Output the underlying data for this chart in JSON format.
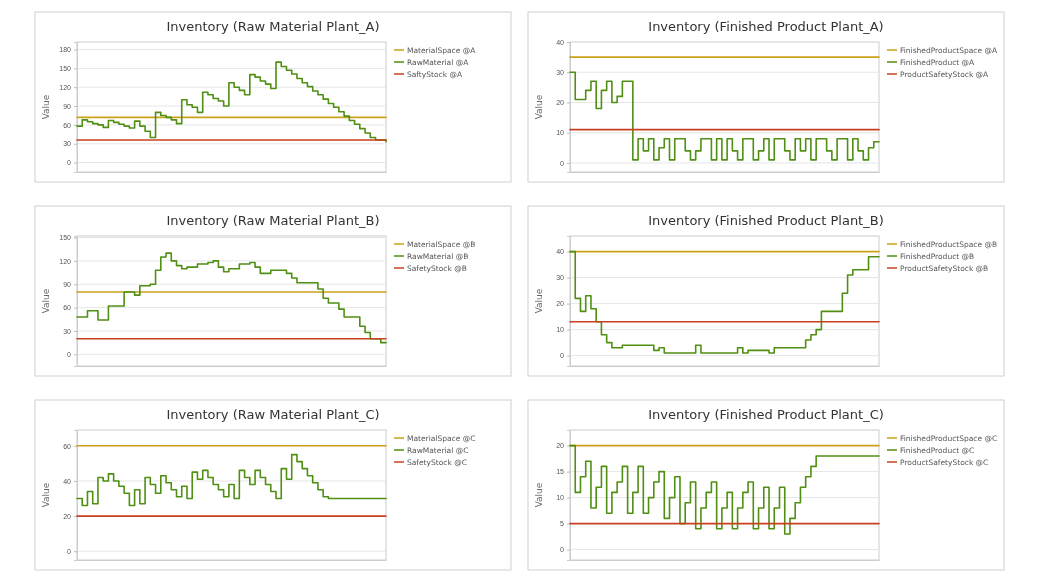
{
  "chart_data": [
    {
      "type": "step",
      "title": "Inventory (Raw Material Plant_A)",
      "ylabel": "Value",
      "ylim": [
        -15,
        192
      ],
      "yticks": [
        0,
        30,
        60,
        90,
        120,
        150,
        180
      ],
      "grid": "y",
      "legend": "right",
      "tick_labels": "y",
      "categories": [
        null,
        null,
        null,
        null,
        null,
        null,
        null,
        null,
        null,
        null,
        null,
        null,
        null,
        null,
        null,
        null,
        null,
        null,
        null,
        null,
        null,
        null,
        null,
        null,
        null,
        null,
        null,
        null,
        null,
        null,
        null,
        null,
        null,
        null,
        null,
        null,
        null,
        null,
        null,
        null,
        null,
        null,
        null,
        null,
        null,
        null,
        null,
        null,
        null,
        null,
        null,
        null,
        null,
        null,
        null,
        null,
        null,
        null,
        null,
        null
      ],
      "series": [
        {
          "type": "line",
          "name": "MaterialSpace @A",
          "color": "#c9a21a",
          "values": [
            72,
            72,
            72,
            72,
            72,
            72,
            72,
            72,
            72,
            72,
            72,
            72,
            72,
            72,
            72,
            72,
            72,
            72,
            72,
            72,
            72,
            72,
            72,
            72,
            72,
            72,
            72,
            72,
            72,
            72,
            72,
            72,
            72,
            72,
            72,
            72,
            72,
            72,
            72,
            72,
            72,
            72,
            72,
            72,
            72,
            72,
            72,
            72,
            72,
            72,
            72,
            72,
            72,
            72,
            72,
            72,
            72,
            72,
            72,
            72
          ]
        },
        {
          "name": "RawMaterial @A",
          "color": "#4f8f12",
          "values": [
            58,
            68,
            65,
            62,
            60,
            56,
            67,
            64,
            61,
            58,
            55,
            66,
            58,
            50,
            40,
            80,
            75,
            72,
            68,
            62,
            100,
            92,
            88,
            80,
            112,
            108,
            102,
            98,
            90,
            127,
            120,
            115,
            108,
            140,
            136,
            130,
            125,
            118,
            160,
            153,
            147,
            141,
            134,
            127,
            121,
            114,
            108,
            101,
            94,
            88,
            81,
            74,
            67,
            61,
            54,
            47,
            40,
            36,
            36,
            33
          ]
        },
        {
          "type": "line",
          "name": "SaftyStock @A",
          "color": "#c8401e",
          "values": [
            36,
            36,
            36,
            36,
            36,
            36,
            36,
            36,
            36,
            36,
            36,
            36,
            36,
            36,
            36,
            36,
            36,
            36,
            36,
            36,
            36,
            36,
            36,
            36,
            36,
            36,
            36,
            36,
            36,
            36,
            36,
            36,
            36,
            36,
            36,
            36,
            36,
            36,
            36,
            36,
            36,
            36,
            36,
            36,
            36,
            36,
            36,
            36,
            36,
            36,
            36,
            36,
            36,
            36,
            36,
            36,
            36,
            36,
            36,
            36
          ]
        }
      ]
    },
    {
      "type": "step",
      "title": "Inventory (Finished Product Plant_A)",
      "ylabel": "Value",
      "ylim": [
        -3,
        40
      ],
      "yticks": [
        0,
        10,
        20,
        30,
        40
      ],
      "grid": "y",
      "legend": "right",
      "tick_labels": "y",
      "categories": [
        null,
        null,
        null,
        null,
        null,
        null,
        null,
        null,
        null,
        null,
        null,
        null,
        null,
        null,
        null,
        null,
        null,
        null,
        null,
        null,
        null,
        null,
        null,
        null,
        null,
        null,
        null,
        null,
        null,
        null,
        null,
        null,
        null,
        null,
        null,
        null,
        null,
        null,
        null,
        null,
        null,
        null,
        null,
        null,
        null,
        null,
        null,
        null,
        null,
        null,
        null,
        null,
        null,
        null,
        null,
        null,
        null,
        null,
        null,
        null
      ],
      "series": [
        {
          "type": "line",
          "name": "FinishedProductSpace @A",
          "color": "#c9a21a",
          "values": [
            35,
            35,
            35,
            35,
            35,
            35,
            35,
            35,
            35,
            35,
            35,
            35,
            35,
            35,
            35,
            35,
            35,
            35,
            35,
            35,
            35,
            35,
            35,
            35,
            35,
            35,
            35,
            35,
            35,
            35,
            35,
            35,
            35,
            35,
            35,
            35,
            35,
            35,
            35,
            35,
            35,
            35,
            35,
            35,
            35,
            35,
            35,
            35,
            35,
            35,
            35,
            35,
            35,
            35,
            35,
            35,
            35,
            35,
            35,
            35
          ]
        },
        {
          "name": "FinishedProduct @A",
          "color": "#4f8f12",
          "values": [
            30,
            21,
            21,
            24,
            27,
            18,
            24,
            27,
            20,
            22,
            27,
            27,
            1,
            8,
            4,
            8,
            1,
            5,
            8,
            1,
            8,
            8,
            4,
            1,
            4,
            8,
            8,
            1,
            8,
            1,
            8,
            4,
            1,
            8,
            8,
            1,
            4,
            8,
            1,
            8,
            8,
            4,
            1,
            8,
            4,
            8,
            1,
            8,
            8,
            4,
            1,
            8,
            8,
            1,
            8,
            4,
            1,
            5,
            7,
            7
          ]
        },
        {
          "type": "line",
          "name": "ProductSafetyStock @A",
          "color": "#c8401e",
          "values": [
            11,
            11,
            11,
            11,
            11,
            11,
            11,
            11,
            11,
            11,
            11,
            11,
            11,
            11,
            11,
            11,
            11,
            11,
            11,
            11,
            11,
            11,
            11,
            11,
            11,
            11,
            11,
            11,
            11,
            11,
            11,
            11,
            11,
            11,
            11,
            11,
            11,
            11,
            11,
            11,
            11,
            11,
            11,
            11,
            11,
            11,
            11,
            11,
            11,
            11,
            11,
            11,
            11,
            11,
            11,
            11,
            11,
            11,
            11,
            11
          ]
        }
      ]
    },
    {
      "type": "step",
      "title": "Inventory (Raw Material Plant_B)",
      "ylabel": "Value",
      "ylim": [
        -15,
        152
      ],
      "yticks": [
        0,
        30,
        60,
        90,
        120,
        150
      ],
      "grid": "y",
      "legend": "right",
      "tick_labels": "y",
      "categories": [
        null,
        null,
        null,
        null,
        null,
        null,
        null,
        null,
        null,
        null,
        null,
        null,
        null,
        null,
        null,
        null,
        null,
        null,
        null,
        null,
        null,
        null,
        null,
        null,
        null,
        null,
        null,
        null,
        null,
        null,
        null,
        null,
        null,
        null,
        null,
        null,
        null,
        null,
        null,
        null,
        null,
        null,
        null,
        null,
        null,
        null,
        null,
        null,
        null,
        null,
        null,
        null,
        null,
        null,
        null,
        null,
        null,
        null,
        null,
        null
      ],
      "series": [
        {
          "type": "line",
          "name": "MaterialSpace @B",
          "color": "#c9a21a",
          "values": [
            80,
            80,
            80,
            80,
            80,
            80,
            80,
            80,
            80,
            80,
            80,
            80,
            80,
            80,
            80,
            80,
            80,
            80,
            80,
            80,
            80,
            80,
            80,
            80,
            80,
            80,
            80,
            80,
            80,
            80,
            80,
            80,
            80,
            80,
            80,
            80,
            80,
            80,
            80,
            80,
            80,
            80,
            80,
            80,
            80,
            80,
            80,
            80,
            80,
            80,
            80,
            80,
            80,
            80,
            80,
            80,
            80,
            80,
            80,
            80
          ]
        },
        {
          "name": "RawMaterial @B",
          "color": "#4f8f12",
          "values": [
            48,
            48,
            56,
            56,
            44,
            44,
            62,
            62,
            62,
            80,
            80,
            76,
            88,
            88,
            90,
            108,
            125,
            130,
            120,
            114,
            110,
            112,
            112,
            116,
            116,
            118,
            120,
            112,
            106,
            110,
            110,
            116,
            116,
            118,
            112,
            104,
            104,
            108,
            108,
            108,
            104,
            98,
            92,
            92,
            92,
            92,
            84,
            72,
            66,
            66,
            58,
            48,
            48,
            48,
            36,
            28,
            20,
            20,
            15,
            15
          ]
        },
        {
          "type": "line",
          "name": "SafetyStock @B",
          "color": "#c8401e",
          "values": [
            20,
            20,
            20,
            20,
            20,
            20,
            20,
            20,
            20,
            20,
            20,
            20,
            20,
            20,
            20,
            20,
            20,
            20,
            20,
            20,
            20,
            20,
            20,
            20,
            20,
            20,
            20,
            20,
            20,
            20,
            20,
            20,
            20,
            20,
            20,
            20,
            20,
            20,
            20,
            20,
            20,
            20,
            20,
            20,
            20,
            20,
            20,
            20,
            20,
            20,
            20,
            20,
            20,
            20,
            20,
            20,
            20,
            20,
            20,
            20
          ]
        }
      ]
    },
    {
      "type": "step",
      "title": "Inventory (Finished Product Plant_B)",
      "ylabel": "Value",
      "ylim": [
        -4,
        46
      ],
      "yticks": [
        0,
        10,
        20,
        30,
        40
      ],
      "grid": "y",
      "legend": "right",
      "tick_labels": "y",
      "categories": [
        null,
        null,
        null,
        null,
        null,
        null,
        null,
        null,
        null,
        null,
        null,
        null,
        null,
        null,
        null,
        null,
        null,
        null,
        null,
        null,
        null,
        null,
        null,
        null,
        null,
        null,
        null,
        null,
        null,
        null,
        null,
        null,
        null,
        null,
        null,
        null,
        null,
        null,
        null,
        null,
        null,
        null,
        null,
        null,
        null,
        null,
        null,
        null,
        null,
        null,
        null,
        null,
        null,
        null,
        null,
        null,
        null,
        null,
        null,
        null
      ],
      "series": [
        {
          "type": "line",
          "name": "FinishedProductSpace @B",
          "color": "#c9a21a",
          "values": [
            40,
            40,
            40,
            40,
            40,
            40,
            40,
            40,
            40,
            40,
            40,
            40,
            40,
            40,
            40,
            40,
            40,
            40,
            40,
            40,
            40,
            40,
            40,
            40,
            40,
            40,
            40,
            40,
            40,
            40,
            40,
            40,
            40,
            40,
            40,
            40,
            40,
            40,
            40,
            40,
            40,
            40,
            40,
            40,
            40,
            40,
            40,
            40,
            40,
            40,
            40,
            40,
            40,
            40,
            40,
            40,
            40,
            40,
            40,
            40
          ]
        },
        {
          "name": "FinishedProduct @B",
          "color": "#4f8f12",
          "values": [
            40,
            22,
            17,
            23,
            18,
            13,
            8,
            5,
            3,
            3,
            4,
            4,
            4,
            4,
            4,
            4,
            2,
            3,
            1,
            1,
            1,
            1,
            1,
            1,
            4,
            1,
            1,
            1,
            1,
            1,
            1,
            1,
            3,
            1,
            2,
            2,
            2,
            2,
            1,
            3,
            3,
            3,
            3,
            3,
            3,
            6,
            8,
            10,
            17,
            17,
            17,
            17,
            24,
            31,
            33,
            33,
            33,
            38,
            38,
            38
          ]
        },
        {
          "type": "line",
          "name": "ProductSafetyStock @B",
          "color": "#c8401e",
          "values": [
            13,
            13,
            13,
            13,
            13,
            13,
            13,
            13,
            13,
            13,
            13,
            13,
            13,
            13,
            13,
            13,
            13,
            13,
            13,
            13,
            13,
            13,
            13,
            13,
            13,
            13,
            13,
            13,
            13,
            13,
            13,
            13,
            13,
            13,
            13,
            13,
            13,
            13,
            13,
            13,
            13,
            13,
            13,
            13,
            13,
            13,
            13,
            13,
            13,
            13,
            13,
            13,
            13,
            13,
            13,
            13,
            13,
            13,
            13,
            13
          ]
        }
      ]
    },
    {
      "type": "step",
      "title": "Inventory (Raw Material Plant_C)",
      "ylabel": "Value",
      "ylim": [
        -5,
        69
      ],
      "yticks": [
        0,
        20,
        40,
        60
      ],
      "grid": "y",
      "legend": "right",
      "tick_labels": "y",
      "categories": [
        null,
        null,
        null,
        null,
        null,
        null,
        null,
        null,
        null,
        null,
        null,
        null,
        null,
        null,
        null,
        null,
        null,
        null,
        null,
        null,
        null,
        null,
        null,
        null,
        null,
        null,
        null,
        null,
        null,
        null,
        null,
        null,
        null,
        null,
        null,
        null,
        null,
        null,
        null,
        null,
        null,
        null,
        null,
        null,
        null,
        null,
        null,
        null,
        null,
        null,
        null,
        null,
        null,
        null,
        null,
        null,
        null,
        null,
        null,
        null
      ],
      "series": [
        {
          "type": "line",
          "name": "MaterialSpace @C",
          "color": "#c9a21a",
          "values": [
            60,
            60,
            60,
            60,
            60,
            60,
            60,
            60,
            60,
            60,
            60,
            60,
            60,
            60,
            60,
            60,
            60,
            60,
            60,
            60,
            60,
            60,
            60,
            60,
            60,
            60,
            60,
            60,
            60,
            60,
            60,
            60,
            60,
            60,
            60,
            60,
            60,
            60,
            60,
            60,
            60,
            60,
            60,
            60,
            60,
            60,
            60,
            60,
            60,
            60,
            60,
            60,
            60,
            60,
            60,
            60,
            60,
            60,
            60,
            60
          ]
        },
        {
          "name": "RawMaterial @C",
          "color": "#4f8f12",
          "values": [
            30,
            26,
            34,
            27,
            42,
            40,
            44,
            40,
            37,
            33,
            26,
            35,
            27,
            42,
            38,
            33,
            43,
            39,
            35,
            31,
            37,
            30,
            45,
            41,
            46,
            42,
            38,
            35,
            31,
            38,
            30,
            46,
            42,
            38,
            46,
            42,
            38,
            34,
            30,
            47,
            41,
            55,
            51,
            47,
            43,
            39,
            35,
            31,
            30,
            30,
            30,
            30,
            30,
            30,
            30,
            30,
            30,
            30,
            30,
            30
          ]
        },
        {
          "type": "line",
          "name": "SafetyStock @C",
          "color": "#c8401e",
          "values": [
            20,
            20,
            20,
            20,
            20,
            20,
            20,
            20,
            20,
            20,
            20,
            20,
            20,
            20,
            20,
            20,
            20,
            20,
            20,
            20,
            20,
            20,
            20,
            20,
            20,
            20,
            20,
            20,
            20,
            20,
            20,
            20,
            20,
            20,
            20,
            20,
            20,
            20,
            20,
            20,
            20,
            20,
            20,
            20,
            20,
            20,
            20,
            20,
            20,
            20,
            20,
            20,
            20,
            20,
            20,
            20,
            20,
            20,
            20,
            20
          ]
        }
      ]
    },
    {
      "type": "step",
      "title": "Inventory (Finished Product Plant_C)",
      "ylabel": "Value",
      "ylim": [
        -2,
        23
      ],
      "yticks": [
        0,
        5,
        10,
        15,
        20
      ],
      "grid": "y",
      "legend": "right",
      "tick_labels": "y",
      "categories": [
        null,
        null,
        null,
        null,
        null,
        null,
        null,
        null,
        null,
        null,
        null,
        null,
        null,
        null,
        null,
        null,
        null,
        null,
        null,
        null,
        null,
        null,
        null,
        null,
        null,
        null,
        null,
        null,
        null,
        null,
        null,
        null,
        null,
        null,
        null,
        null,
        null,
        null,
        null,
        null,
        null,
        null,
        null,
        null,
        null,
        null,
        null,
        null,
        null,
        null,
        null,
        null,
        null,
        null,
        null,
        null,
        null,
        null,
        null,
        null
      ],
      "series": [
        {
          "type": "line",
          "name": "FinishedProductSpace @C",
          "color": "#c9a21a",
          "values": [
            20,
            20,
            20,
            20,
            20,
            20,
            20,
            20,
            20,
            20,
            20,
            20,
            20,
            20,
            20,
            20,
            20,
            20,
            20,
            20,
            20,
            20,
            20,
            20,
            20,
            20,
            20,
            20,
            20,
            20,
            20,
            20,
            20,
            20,
            20,
            20,
            20,
            20,
            20,
            20,
            20,
            20,
            20,
            20,
            20,
            20,
            20,
            20,
            20,
            20,
            20,
            20,
            20,
            20,
            20,
            20,
            20,
            20,
            20,
            20
          ]
        },
        {
          "name": "FinishedProduct @C",
          "color": "#4f8f12",
          "values": [
            20,
            11,
            14,
            17,
            8,
            12,
            16,
            7,
            11,
            13,
            16,
            7,
            11,
            16,
            7,
            10,
            13,
            15,
            6,
            10,
            14,
            5,
            9,
            13,
            4,
            8,
            11,
            13,
            4,
            8,
            11,
            4,
            8,
            11,
            13,
            4,
            8,
            12,
            4,
            8,
            12,
            3,
            6,
            9,
            12,
            14,
            16,
            18,
            18,
            18,
            18,
            18,
            18,
            18,
            18,
            18,
            18,
            18,
            18,
            18
          ]
        },
        {
          "type": "line",
          "name": "ProductSafetyStock @C",
          "color": "#c8401e",
          "values": [
            5,
            5,
            5,
            5,
            5,
            5,
            5,
            5,
            5,
            5,
            5,
            5,
            5,
            5,
            5,
            5,
            5,
            5,
            5,
            5,
            5,
            5,
            5,
            5,
            5,
            5,
            5,
            5,
            5,
            5,
            5,
            5,
            5,
            5,
            5,
            5,
            5,
            5,
            5,
            5,
            5,
            5,
            5,
            5,
            5,
            5,
            5,
            5,
            5,
            5,
            5,
            5,
            5,
            5,
            5,
            5,
            5,
            5,
            5,
            5
          ]
        }
      ]
    }
  ]
}
